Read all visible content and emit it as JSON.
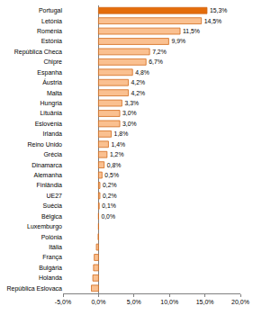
{
  "chart_data": {
    "type": "bar",
    "orientation": "horizontal",
    "categories": [
      "Portugal",
      "Letónia",
      "Roménia",
      "Estónia",
      "República Checa",
      "Chipre",
      "Espanha",
      "Áustria",
      "Malta",
      "Hungria",
      "Lituânia",
      "Eslovénia",
      "Irlanda",
      "Reino Unido",
      "Grécia",
      "Dinamarca",
      "Alemanha",
      "Finlândia",
      "UE27",
      "Suécia",
      "Bélgica",
      "Luxemburgo",
      "Polónia",
      "Itália",
      "França",
      "Bulgária",
      "Holanda",
      "República Eslovaca"
    ],
    "values": [
      15.3,
      14.5,
      11.5,
      9.9,
      7.2,
      6.7,
      4.8,
      4.2,
      4.2,
      3.3,
      3.0,
      3.0,
      1.8,
      1.4,
      1.2,
      0.8,
      0.5,
      0.2,
      0.2,
      0.1,
      0.0,
      0.0,
      -0.05,
      -0.3,
      -0.6,
      -0.7,
      -0.8,
      -1.0
    ],
    "value_labels": [
      "15,3%",
      "14,5%",
      "11,5%",
      "9,9%",
      "7,2%",
      "6,7%",
      "4,8%",
      "4,2%",
      "4,2%",
      "3,3%",
      "3,0%",
      "3,0%",
      "1,8%",
      "1,4%",
      "1,2%",
      "0,8%",
      "0,5%",
      "0,2%",
      "0,2%",
      "0,1%",
      "0,0%",
      null,
      null,
      null,
      null,
      null,
      null,
      null
    ],
    "colors": [
      "#e46c0a",
      "#fac090",
      "#fac090",
      "#fac090",
      "#fac090",
      "#fac090",
      "#fac090",
      "#fac090",
      "#fac090",
      "#fac090",
      "#fac090",
      "#fac090",
      "#fac090",
      "#fac090",
      "#fac090",
      "#fac090",
      "#fac090",
      "#fac090",
      "#fac090",
      "#fac090",
      "#fac090",
      "#fac090",
      "#fac090",
      "#fac090",
      "#fac090",
      "#fac090",
      "#fac090",
      "#fac090"
    ],
    "data_labels": true,
    "grid": false,
    "xlim": [
      -5,
      20
    ],
    "xticks": [
      {
        "value": -5,
        "label": "-5,0%"
      },
      {
        "value": 0,
        "label": "0,0%"
      },
      {
        "value": 5,
        "label": "5,0%"
      },
      {
        "value": 10,
        "label": "10,0%"
      },
      {
        "value": 15,
        "label": "15,0%"
      },
      {
        "value": 20,
        "label": "20,0%"
      }
    ]
  }
}
